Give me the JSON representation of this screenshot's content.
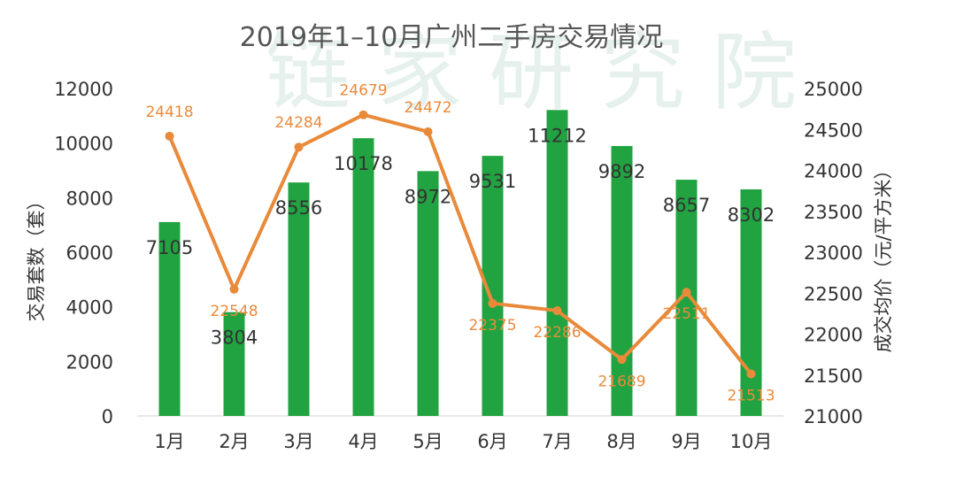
{
  "chart_data": {
    "type": "bar",
    "title": "2019年1–10月广州二手房交易情况",
    "watermark": "链家研究院",
    "categories": [
      "1月",
      "2月",
      "3月",
      "4月",
      "5月",
      "6月",
      "7月",
      "8月",
      "9月",
      "10月"
    ],
    "series": [
      {
        "type": "bar",
        "axis": "left",
        "color": "#21a341",
        "values": [
          7105,
          3804,
          8556,
          10178,
          8972,
          9531,
          11212,
          9892,
          8657,
          8302
        ]
      },
      {
        "type": "line",
        "axis": "right",
        "color": "#e98a3a",
        "values": [
          24418,
          22548,
          24284,
          24679,
          24472,
          22375,
          22286,
          21689,
          22511,
          21513
        ]
      }
    ],
    "ylabel": "交易套数（套）",
    "ylim": [
      0,
      12000
    ],
    "yticks": [
      0,
      2000,
      4000,
      6000,
      8000,
      10000,
      12000
    ],
    "y2label": "成交均价（元/平方米）",
    "y2lim": [
      21000,
      25000
    ],
    "y2ticks": [
      21000,
      21500,
      22000,
      22500,
      23000,
      23500,
      24000,
      24500,
      25000
    ],
    "grid": false,
    "legend": "none"
  }
}
